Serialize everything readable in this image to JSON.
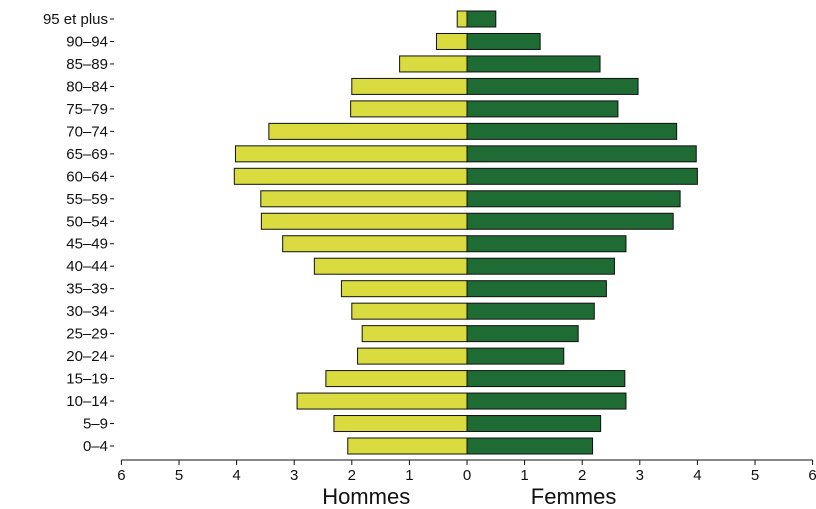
{
  "chart_data": {
    "type": "bar",
    "orientation": "horizontal-diverging",
    "categories": [
      "0–4",
      "5–9",
      "10–14",
      "15–19",
      "20–24",
      "25–29",
      "30–34",
      "35–39",
      "40–44",
      "45–49",
      "50–54",
      "55–59",
      "60–64",
      "65–69",
      "70–74",
      "75–79",
      "80–84",
      "85–89",
      "90–94",
      "95 et plus"
    ],
    "series": [
      {
        "name": "Hommes",
        "side": "left",
        "color": "#d9db3f",
        "values": [
          2.07,
          2.31,
          2.95,
          2.45,
          1.9,
          1.82,
          2.0,
          2.18,
          2.65,
          3.2,
          3.57,
          3.58,
          4.04,
          4.02,
          3.44,
          2.02,
          2.0,
          1.17,
          0.53,
          0.17
        ]
      },
      {
        "name": "Femmes",
        "side": "right",
        "color": "#1e6b33",
        "values": [
          2.18,
          2.32,
          2.76,
          2.74,
          1.68,
          1.93,
          2.21,
          2.42,
          2.56,
          2.76,
          3.58,
          3.7,
          4.0,
          3.98,
          3.64,
          2.62,
          2.97,
          2.31,
          1.27,
          0.5
        ]
      }
    ],
    "x_ticks": [
      "6",
      "5",
      "4",
      "3",
      "2",
      "1",
      "0",
      "1",
      "2",
      "3",
      "4",
      "5",
      "6"
    ],
    "xlabel_left": "Hommes",
    "xlabel_right": "Femmes",
    "xlim": [
      -6,
      6
    ],
    "grid": false,
    "legend": "none"
  }
}
